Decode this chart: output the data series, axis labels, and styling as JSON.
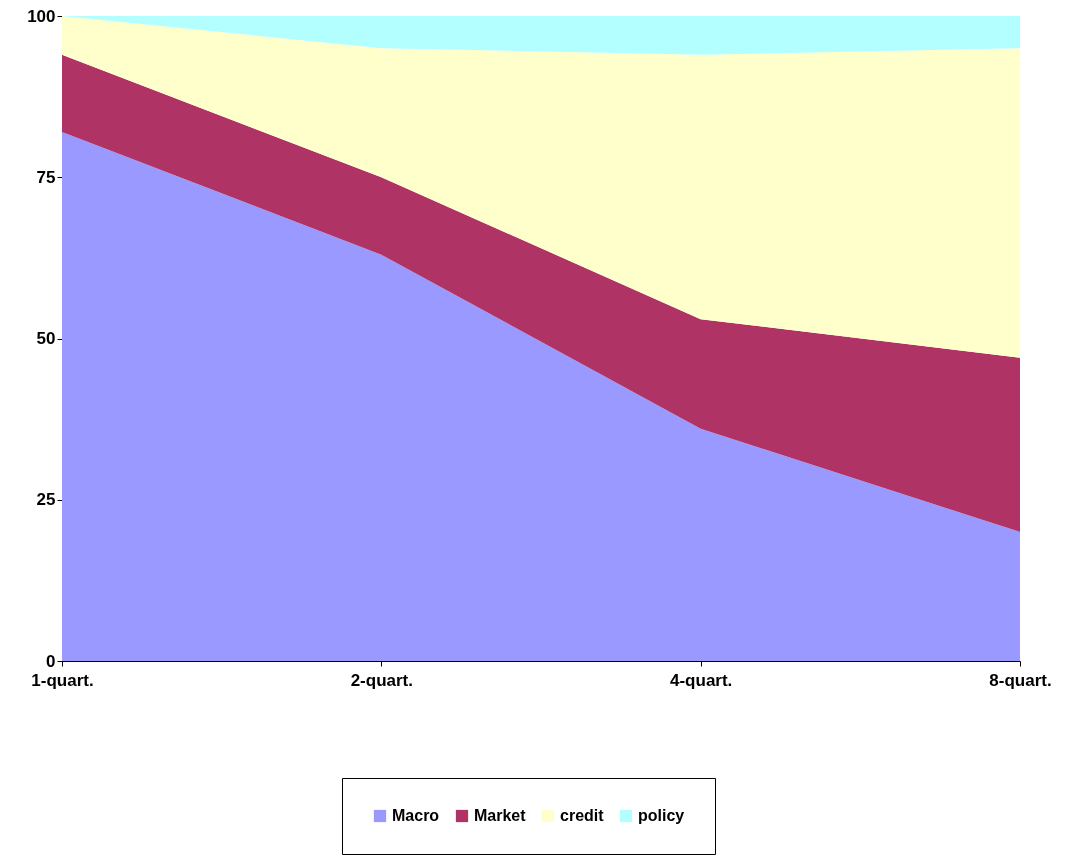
{
  "chart_data": {
    "type": "area",
    "stacked": true,
    "categories": [
      "1-quart.",
      "2-quart.",
      "4-quart.",
      "8-quart."
    ],
    "series": [
      {
        "name": "Macro",
        "color": "#9999ff",
        "values": [
          82,
          63,
          36,
          20
        ]
      },
      {
        "name": "Market",
        "color": "#b03366",
        "values": [
          12,
          12,
          17,
          27
        ]
      },
      {
        "name": "credit",
        "color": "#ffffcc",
        "values": [
          6,
          20,
          41,
          48
        ]
      },
      {
        "name": "policy",
        "color": "#b3ffff",
        "values": [
          0,
          5,
          6,
          5
        ]
      }
    ],
    "ylim": [
      0,
      100
    ],
    "yticks": [
      0,
      25,
      50,
      75,
      100
    ],
    "grid": false,
    "legend": "bottom"
  }
}
